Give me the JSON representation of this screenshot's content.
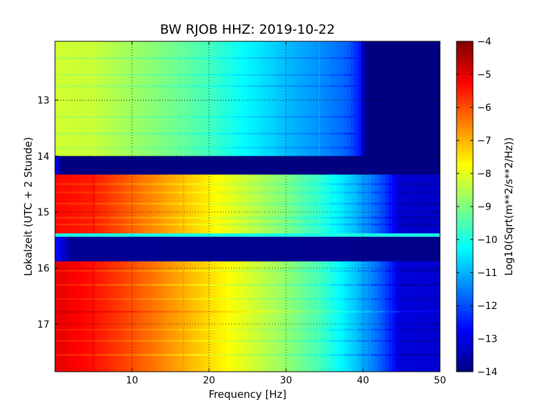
{
  "chart_data": {
    "type": "heatmap",
    "title": "BW RJOB HHZ: 2019-10-22",
    "xlabel": "Frequency [Hz]",
    "ylabel": "Lokalzeit (UTC + 2 Stunde)",
    "xlim": [
      0,
      50
    ],
    "ylim": [
      11.95,
      17.85
    ],
    "y_inverted": true,
    "x_ticks": [
      10,
      20,
      30,
      40,
      50
    ],
    "y_ticks": [
      13,
      14,
      15,
      16,
      17
    ],
    "grid": true,
    "colormap": "jet",
    "colorbar": {
      "label": "Log10(Sqrt(m**2/s**2/Hz))",
      "range": [
        -14,
        -4
      ],
      "ticks": [
        -4,
        -5,
        -6,
        -7,
        -8,
        -9,
        -10,
        -11,
        -12,
        -13,
        -14
      ]
    },
    "bands": [
      {
        "t_start": 11.95,
        "t_end": 14.0,
        "f_knots": [
          [
            0,
            -8.2
          ],
          [
            5,
            -8.3
          ],
          [
            10,
            -8.7
          ],
          [
            15,
            -9.1
          ],
          [
            20,
            -9.6
          ],
          [
            25,
            -10.3
          ],
          [
            30,
            -10.9
          ],
          [
            35,
            -11.4
          ],
          [
            38,
            -11.8
          ],
          [
            39.5,
            -12.5
          ],
          [
            40.5,
            -14
          ],
          [
            50,
            -14
          ]
        ]
      },
      {
        "t_start": 14.0,
        "t_end": 14.33,
        "f_knots": [
          [
            0,
            -12.5
          ],
          [
            0.8,
            -14
          ],
          [
            50,
            -14
          ]
        ]
      },
      {
        "t_start": 14.33,
        "t_end": 15.38,
        "f_knots": [
          [
            0,
            -5.3
          ],
          [
            5,
            -5.5
          ],
          [
            10,
            -6.2
          ],
          [
            15,
            -6.9
          ],
          [
            20,
            -7.6
          ],
          [
            25,
            -8.3
          ],
          [
            30,
            -9.0
          ],
          [
            35,
            -9.9
          ],
          [
            39,
            -10.9
          ],
          [
            42,
            -11.8
          ],
          [
            44,
            -12.7
          ],
          [
            44.5,
            -13.2
          ],
          [
            50,
            -13.3
          ]
        ]
      },
      {
        "t_start": 15.38,
        "t_end": 15.44,
        "f_knots": [
          [
            0,
            -10
          ],
          [
            50,
            -10
          ]
        ]
      },
      {
        "t_start": 15.44,
        "t_end": 15.88,
        "f_knots": [
          [
            0,
            -12.5
          ],
          [
            2,
            -13.8
          ],
          [
            50,
            -13.9
          ]
        ]
      },
      {
        "t_start": 15.88,
        "t_end": 17.85,
        "f_knots": [
          [
            0,
            -5.0
          ],
          [
            5,
            -5.4
          ],
          [
            10,
            -6.0
          ],
          [
            15,
            -6.7
          ],
          [
            20,
            -7.4
          ],
          [
            25,
            -8.1
          ],
          [
            30,
            -8.8
          ],
          [
            35,
            -9.7
          ],
          [
            39,
            -10.8
          ],
          [
            42,
            -11.7
          ],
          [
            44,
            -12.6
          ],
          [
            44.5,
            -13.1
          ],
          [
            50,
            -13.2
          ]
        ]
      }
    ],
    "horizontal_streaks": [
      {
        "t": 12.25,
        "delta": -0.5
      },
      {
        "t": 12.55,
        "delta": -0.4
      },
      {
        "t": 12.75,
        "delta": -0.5
      },
      {
        "t": 13.3,
        "delta": -0.4
      },
      {
        "t": 13.6,
        "delta": -0.5
      },
      {
        "t": 13.85,
        "delta": -0.4
      },
      {
        "t": 14.5,
        "delta": -0.5
      },
      {
        "t": 14.65,
        "delta": -0.4
      },
      {
        "t": 14.85,
        "delta": -0.5
      },
      {
        "t": 15.1,
        "delta": -0.6
      },
      {
        "t": 15.22,
        "delta": -0.5
      },
      {
        "t": 16.05,
        "delta": -0.5
      },
      {
        "t": 16.3,
        "delta": -0.6
      },
      {
        "t": 16.55,
        "delta": -0.4
      },
      {
        "t": 16.78,
        "delta": 0.5
      },
      {
        "t": 17.1,
        "delta": -0.4
      },
      {
        "t": 17.3,
        "delta": -0.5
      },
      {
        "t": 17.55,
        "delta": -0.6
      }
    ],
    "vertical_lines": [
      {
        "f": 5.0,
        "delta": 0.35
      },
      {
        "f": 16.7,
        "delta": 0.25
      },
      {
        "f": 34.3,
        "delta": 0.3
      }
    ]
  }
}
